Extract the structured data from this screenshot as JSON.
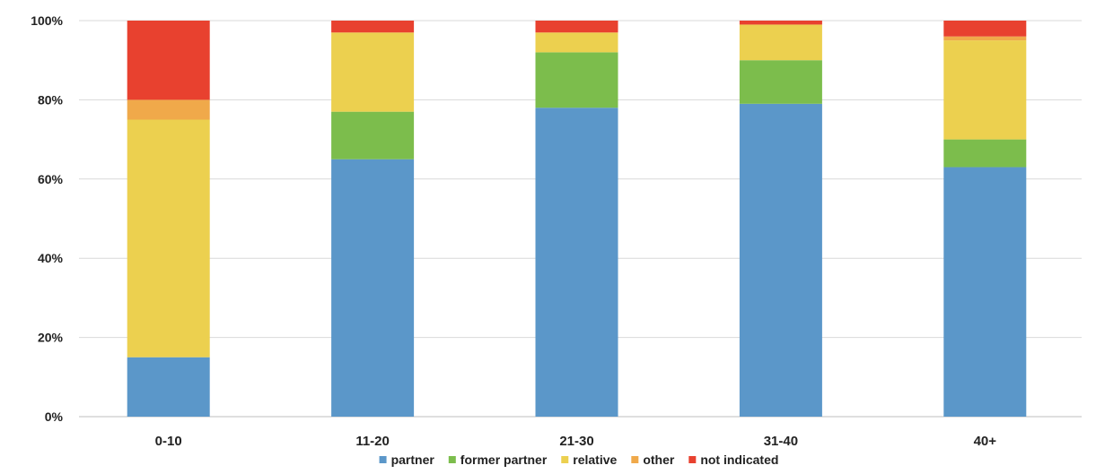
{
  "chart_data": {
    "type": "bar",
    "stacked": true,
    "percent": true,
    "categories": [
      "0-10",
      "11-20",
      "21-30",
      "31-40",
      "40+"
    ],
    "series": [
      {
        "name": "partner",
        "color": "#5b97c9",
        "values": [
          15,
          65,
          78,
          79,
          63
        ]
      },
      {
        "name": "former partner",
        "color": "#7cbd4c",
        "values": [
          0,
          12,
          14,
          11,
          7
        ]
      },
      {
        "name": "relative",
        "color": "#ecd04f",
        "values": [
          60,
          20,
          5,
          9,
          25
        ]
      },
      {
        "name": "other",
        "color": "#f0a94a",
        "values": [
          5,
          0,
          0,
          0,
          1
        ]
      },
      {
        "name": "not indicated",
        "color": "#e8412f",
        "values": [
          20,
          3,
          3,
          1,
          4
        ]
      }
    ],
    "y_ticks": [
      "0%",
      "20%",
      "40%",
      "60%",
      "80%",
      "100%"
    ],
    "ylim": [
      0,
      100
    ],
    "grid": true,
    "legend_position": "bottom"
  }
}
